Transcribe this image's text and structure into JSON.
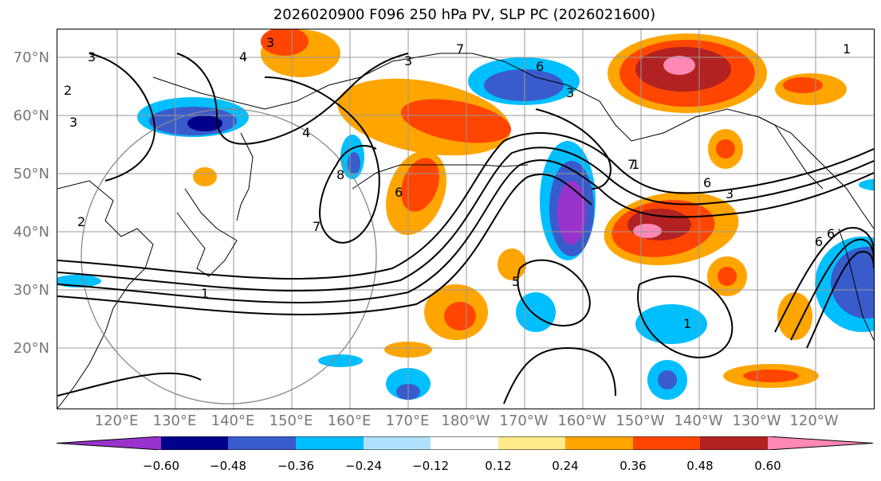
{
  "title": "2026020900 F096 250 hPa PV, SLP PC (2026021600)",
  "lat_labels": [
    "70°N",
    "60°N",
    "50°N",
    "40°N",
    "30°N",
    "20°N"
  ],
  "lon_labels": [
    "120°E",
    "130°E",
    "140°E",
    "150°E",
    "160°E",
    "170°E",
    "180°W",
    "170°W",
    "160°W",
    "150°W",
    "140°W",
    "130°W",
    "120°W"
  ],
  "colorbar": {
    "tick_labels": [
      "−0.60",
      "−0.48",
      "−0.36",
      "−0.24",
      "−0.12",
      "0.12",
      "0.24",
      "0.36",
      "0.48",
      "0.60"
    ],
    "colors": [
      "#9933cc",
      "#00008b",
      "#3a5bcc",
      "#00bfff",
      "#b0e2ff",
      "#ffffff",
      "#ffeb8a",
      "#ffa500",
      "#ff4500",
      "#b22222",
      "#ff88b5"
    ]
  },
  "contour_labels": [
    "3",
    "4",
    "3",
    "2",
    "3",
    "4",
    "8",
    "6",
    "7",
    "6",
    "3",
    "6",
    "1",
    "2",
    "1",
    "7",
    "3",
    "6",
    "3",
    "1",
    "6",
    "5",
    "7",
    "1"
  ]
}
